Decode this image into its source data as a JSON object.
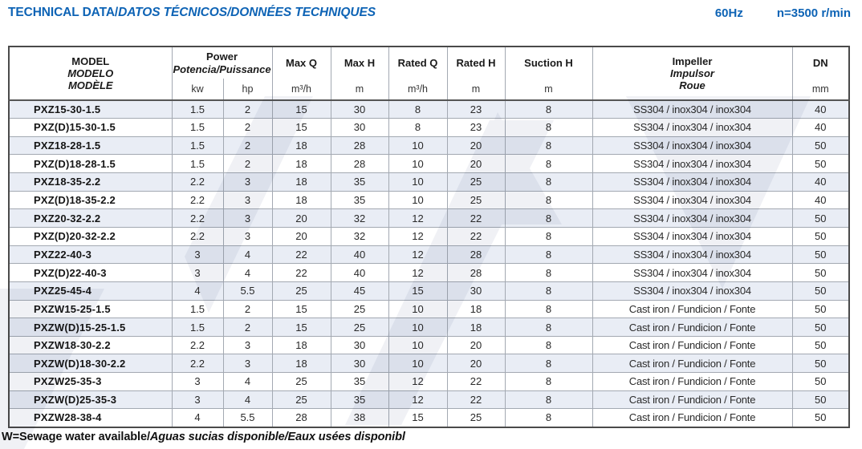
{
  "page": {
    "title_plain": "TECHNICAL DATA/",
    "title_italic": "DATOS TÉCNICOS/DONNÉES TECHNIQUES",
    "frequency": "60Hz",
    "speed": "n=3500 r/min",
    "footnote_plain": "W=Sewage water available/",
    "footnote_italic": "Aguas sucias disponible/Eaux usées disponibl"
  },
  "colors": {
    "accent_blue": "#0d63b5",
    "row_alt_bg": "#e9edf5",
    "grid_line": "#a3a9b2",
    "outer_border": "#4a4a4a"
  },
  "table": {
    "header": {
      "model": [
        "MODEL",
        "MODELO",
        "MODÈLE"
      ],
      "power_label": "Power",
      "power_sub": "Potencia/Puissance",
      "power_unit_kw": "kw",
      "power_unit_hp": "hp",
      "max_q": "Max Q",
      "max_q_unit": "m³/h",
      "max_h": "Max H",
      "max_h_unit": "m",
      "rated_q": "Rated Q",
      "rated_q_unit": "m³/h",
      "rated_h": "Rated H",
      "rated_h_unit": "m",
      "suction_h": "Suction H",
      "suction_h_unit": "m",
      "impeller": [
        "Impeller",
        "Impulsor",
        "Roue"
      ],
      "dn": "DN",
      "dn_unit": "mm"
    },
    "rows": [
      {
        "model": "PXZ15-30-1.5",
        "kw": "1.5",
        "hp": "2",
        "max_q": "15",
        "max_h": "30",
        "rated_q": "8",
        "rated_h": "23",
        "suction_h": "8",
        "impeller": "SS304 / inox304 / inox304",
        "dn": "40"
      },
      {
        "model": "PXZ(D)15-30-1.5",
        "kw": "1.5",
        "hp": "2",
        "max_q": "15",
        "max_h": "30",
        "rated_q": "8",
        "rated_h": "23",
        "suction_h": "8",
        "impeller": "SS304 / inox304 / inox304",
        "dn": "40"
      },
      {
        "model": "PXZ18-28-1.5",
        "kw": "1.5",
        "hp": "2",
        "max_q": "18",
        "max_h": "28",
        "rated_q": "10",
        "rated_h": "20",
        "suction_h": "8",
        "impeller": "SS304 / inox304 / inox304",
        "dn": "50"
      },
      {
        "model": "PXZ(D)18-28-1.5",
        "kw": "1.5",
        "hp": "2",
        "max_q": "18",
        "max_h": "28",
        "rated_q": "10",
        "rated_h": "20",
        "suction_h": "8",
        "impeller": "SS304 / inox304 / inox304",
        "dn": "50"
      },
      {
        "model": "PXZ18-35-2.2",
        "kw": "2.2",
        "hp": "3",
        "max_q": "18",
        "max_h": "35",
        "rated_q": "10",
        "rated_h": "25",
        "suction_h": "8",
        "impeller": "SS304 / inox304 / inox304",
        "dn": "40"
      },
      {
        "model": "PXZ(D)18-35-2.2",
        "kw": "2.2",
        "hp": "3",
        "max_q": "18",
        "max_h": "35",
        "rated_q": "10",
        "rated_h": "25",
        "suction_h": "8",
        "impeller": "SS304 / inox304 / inox304",
        "dn": "40"
      },
      {
        "model": "PXZ20-32-2.2",
        "kw": "2.2",
        "hp": "3",
        "max_q": "20",
        "max_h": "32",
        "rated_q": "12",
        "rated_h": "22",
        "suction_h": "8",
        "impeller": "SS304 / inox304 / inox304",
        "dn": "50"
      },
      {
        "model": "PXZ(D)20-32-2.2",
        "kw": "2.2",
        "hp": "3",
        "max_q": "20",
        "max_h": "32",
        "rated_q": "12",
        "rated_h": "22",
        "suction_h": "8",
        "impeller": "SS304 / inox304 / inox304",
        "dn": "50"
      },
      {
        "model": "PXZ22-40-3",
        "kw": "3",
        "hp": "4",
        "max_q": "22",
        "max_h": "40",
        "rated_q": "12",
        "rated_h": "28",
        "suction_h": "8",
        "impeller": "SS304 / inox304 / inox304",
        "dn": "50"
      },
      {
        "model": "PXZ(D)22-40-3",
        "kw": "3",
        "hp": "4",
        "max_q": "22",
        "max_h": "40",
        "rated_q": "12",
        "rated_h": "28",
        "suction_h": "8",
        "impeller": "SS304 / inox304 / inox304",
        "dn": "50"
      },
      {
        "model": "PXZ25-45-4",
        "kw": "4",
        "hp": "5.5",
        "max_q": "25",
        "max_h": "45",
        "rated_q": "15",
        "rated_h": "30",
        "suction_h": "8",
        "impeller": "SS304 / inox304 / inox304",
        "dn": "50"
      },
      {
        "model": "PXZW15-25-1.5",
        "kw": "1.5",
        "hp": "2",
        "max_q": "15",
        "max_h": "25",
        "rated_q": "10",
        "rated_h": "18",
        "suction_h": "8",
        "impeller": "Cast iron / Fundicion / Fonte",
        "dn": "50"
      },
      {
        "model": "PXZW(D)15-25-1.5",
        "kw": "1.5",
        "hp": "2",
        "max_q": "15",
        "max_h": "25",
        "rated_q": "10",
        "rated_h": "18",
        "suction_h": "8",
        "impeller": "Cast iron / Fundicion / Fonte",
        "dn": "50"
      },
      {
        "model": "PXZW18-30-2.2",
        "kw": "2.2",
        "hp": "3",
        "max_q": "18",
        "max_h": "30",
        "rated_q": "10",
        "rated_h": "20",
        "suction_h": "8",
        "impeller": "Cast iron / Fundicion / Fonte",
        "dn": "50"
      },
      {
        "model": "PXZW(D)18-30-2.2",
        "kw": "2.2",
        "hp": "3",
        "max_q": "18",
        "max_h": "30",
        "rated_q": "10",
        "rated_h": "20",
        "suction_h": "8",
        "impeller": "Cast iron / Fundicion / Fonte",
        "dn": "50"
      },
      {
        "model": "PXZW25-35-3",
        "kw": "3",
        "hp": "4",
        "max_q": "25",
        "max_h": "35",
        "rated_q": "12",
        "rated_h": "22",
        "suction_h": "8",
        "impeller": "Cast iron / Fundicion / Fonte",
        "dn": "50"
      },
      {
        "model": "PXZW(D)25-35-3",
        "kw": "3",
        "hp": "4",
        "max_q": "25",
        "max_h": "35",
        "rated_q": "12",
        "rated_h": "22",
        "suction_h": "8",
        "impeller": "Cast iron / Fundicion / Fonte",
        "dn": "50"
      },
      {
        "model": "PXZW28-38-4",
        "kw": "4",
        "hp": "5.5",
        "max_q": "28",
        "max_h": "38",
        "rated_q": "15",
        "rated_h": "25",
        "suction_h": "8",
        "impeller": "Cast iron / Fundicion / Fonte",
        "dn": "50"
      }
    ]
  }
}
